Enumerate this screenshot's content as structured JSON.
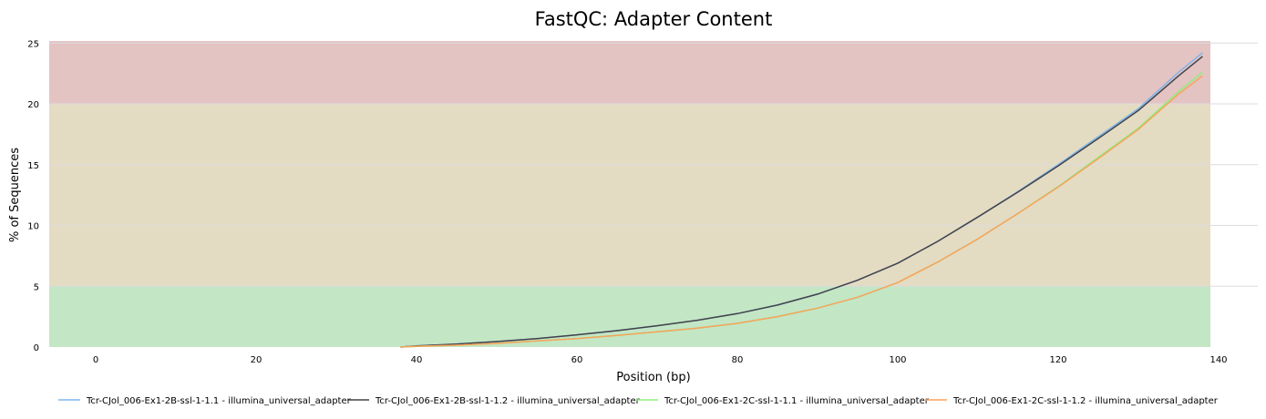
{
  "chart_data": {
    "type": "line",
    "title": "FastQC: Adapter Content",
    "xlabel": "Position (bp)",
    "ylabel": "% of Sequences",
    "xlim": [
      -7,
      140
    ],
    "ylim": [
      0,
      25
    ],
    "x_ticks": [
      0,
      20,
      40,
      60,
      80,
      100,
      120,
      140
    ],
    "y_ticks": [
      0,
      5,
      10,
      15,
      20,
      25
    ],
    "grid": true,
    "legend_position": "bottom",
    "bands": [
      {
        "from": 0,
        "to": 5,
        "color": "#c3e6c5"
      },
      {
        "from": 5,
        "to": 20,
        "color": "#e4dbc3"
      },
      {
        "from": 20,
        "to": 25.5,
        "color": "#e4c3c3"
      }
    ],
    "x": [
      38,
      40,
      45,
      50,
      55,
      60,
      65,
      70,
      75,
      80,
      85,
      90,
      95,
      100,
      105,
      110,
      115,
      120,
      125,
      130,
      135,
      138
    ],
    "series": [
      {
        "name": "Tcr-CJol_006-Ex1-2B-ssl-1-1.1 - illumina_universal_adapter",
        "color": "#7cb5ec",
        "values": [
          0,
          0.1,
          0.25,
          0.45,
          0.7,
          1.0,
          1.35,
          1.75,
          2.2,
          2.75,
          3.45,
          4.35,
          5.5,
          6.9,
          8.7,
          10.7,
          12.8,
          15.0,
          17.3,
          19.6,
          22.6,
          24.2
        ]
      },
      {
        "name": "Tcr-CJol_006-Ex1-2B-ssl-1-1.2 - illumina_universal_adapter",
        "color": "#434348",
        "values": [
          0,
          0.1,
          0.25,
          0.45,
          0.7,
          1.0,
          1.35,
          1.75,
          2.2,
          2.75,
          3.45,
          4.35,
          5.5,
          6.9,
          8.7,
          10.7,
          12.75,
          14.9,
          17.15,
          19.45,
          22.3,
          23.9
        ]
      },
      {
        "name": "Tcr-CJol_006-Ex1-2C-ssl-1-1.1 - illumina_universal_adapter",
        "color": "#90ed7d",
        "values": [
          0,
          0.05,
          0.15,
          0.3,
          0.5,
          0.7,
          0.95,
          1.25,
          1.55,
          1.95,
          2.5,
          3.2,
          4.1,
          5.3,
          7.0,
          8.9,
          11.0,
          13.2,
          15.6,
          18.0,
          21.0,
          22.6
        ]
      },
      {
        "name": "Tcr-CJol_006-Ex1-2C-ssl-1-1.2 - illumina_universal_adapter",
        "color": "#f7a35c",
        "values": [
          0,
          0.05,
          0.15,
          0.3,
          0.5,
          0.7,
          0.95,
          1.25,
          1.55,
          1.95,
          2.5,
          3.2,
          4.1,
          5.3,
          7.0,
          8.9,
          11.0,
          13.15,
          15.5,
          17.9,
          20.8,
          22.3
        ]
      }
    ]
  }
}
